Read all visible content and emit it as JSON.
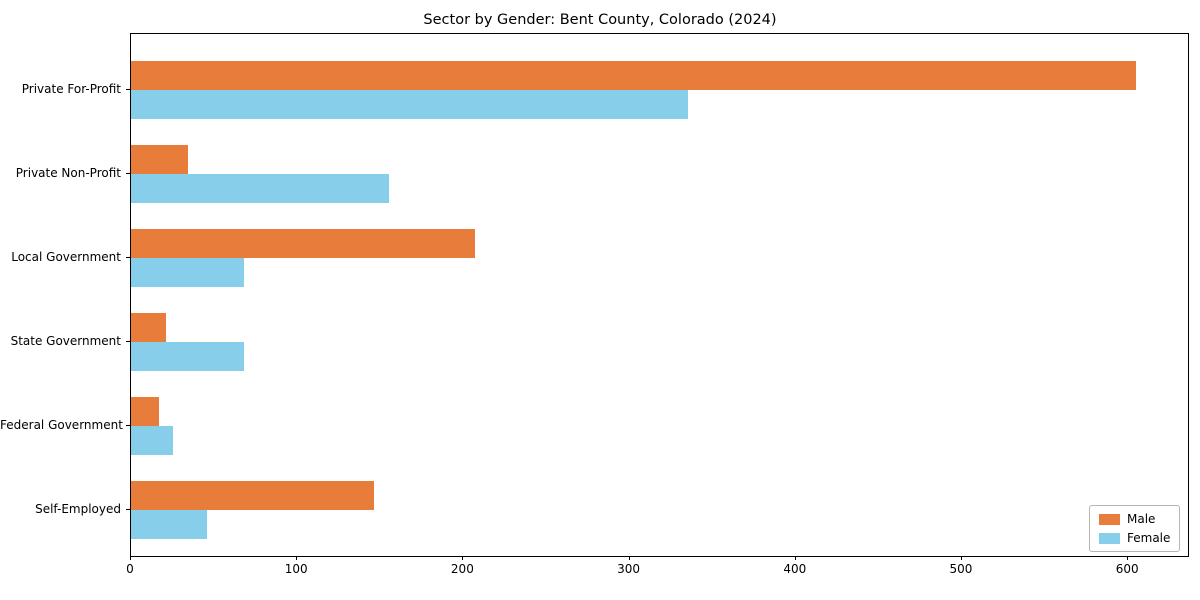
{
  "figure": {
    "background": "#ffffff",
    "axes_edge_color": "#000000",
    "text_color": "#000000"
  },
  "chart_data": {
    "type": "bar",
    "orientation": "horizontal",
    "title": "Sector by Gender: Bent County, Colorado (2024)",
    "xlabel": "",
    "ylabel": "",
    "categories": [
      "Private For-Profit",
      "Private Non-Profit",
      "Local Government",
      "State Government",
      "Federal Government",
      "Self-Employed"
    ],
    "series": [
      {
        "name": "Male",
        "color": "#e87d3b",
        "values": [
          605,
          34,
          207,
          21,
          17,
          146
        ]
      },
      {
        "name": "Female",
        "color": "#87ceeb",
        "values": [
          335,
          155,
          68,
          68,
          25,
          46
        ]
      }
    ],
    "xlim": [
      0,
      636
    ],
    "xticks": [
      0,
      100,
      200,
      300,
      400,
      500,
      600
    ],
    "grid": false,
    "legend_position": "lower right"
  }
}
